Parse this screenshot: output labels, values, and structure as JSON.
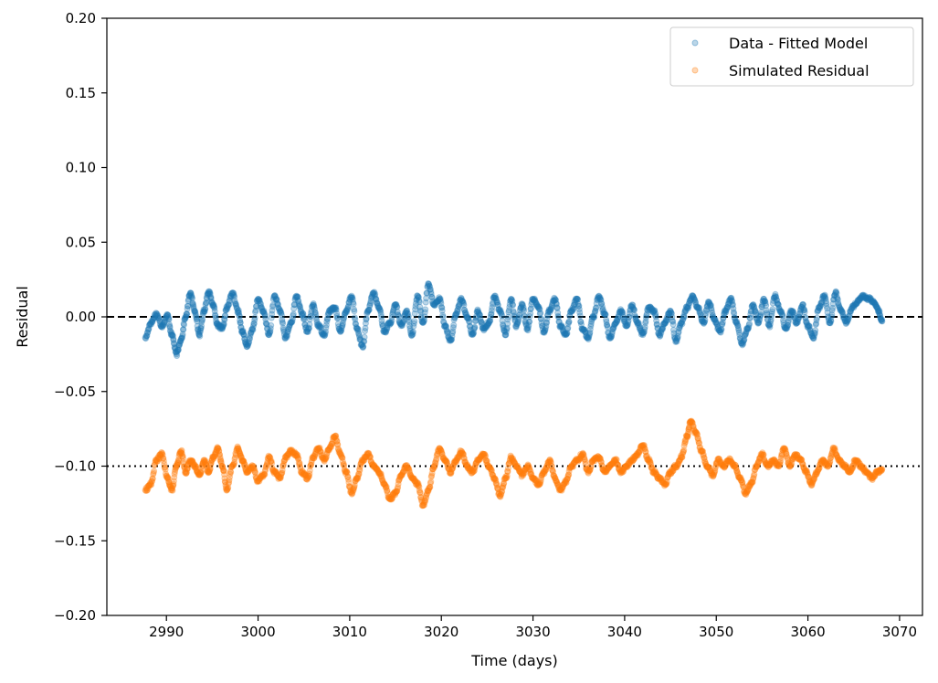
{
  "chart_data": {
    "type": "scatter",
    "title": "",
    "xlabel": "Time (days)",
    "ylabel": "Residual",
    "xlim": [
      2983.5,
      3072.5
    ],
    "ylim": [
      -0.2,
      0.2
    ],
    "x_ticks": [
      2990,
      3000,
      3010,
      3020,
      3030,
      3040,
      3050,
      3060,
      3070
    ],
    "y_ticks": [
      -0.2,
      -0.15,
      -0.1,
      -0.05,
      0.0,
      0.05,
      0.1,
      0.15,
      0.2
    ],
    "x_tick_labels": [
      "2990",
      "3000",
      "3010",
      "3020",
      "3030",
      "3040",
      "3050",
      "3060",
      "3070"
    ],
    "y_tick_labels": [
      "−0.20",
      "−0.15",
      "−0.10",
      "−0.05",
      "0.00",
      "0.05",
      "0.10",
      "0.15",
      "0.20"
    ],
    "grid": false,
    "legend_position": "top-right",
    "reference_lines": [
      {
        "y": 0.0,
        "style": "dashed",
        "color": "#000000"
      },
      {
        "y": -0.1,
        "style": "dotted",
        "color": "#000000"
      }
    ],
    "series": [
      {
        "name": "Data - Fitted Model",
        "color": "#1f77b4",
        "points": [
          [
            2987.7,
            -0.014
          ],
          [
            2988.3,
            -0.004
          ],
          [
            2988.9,
            0.002
          ],
          [
            2989.5,
            -0.006
          ],
          [
            2990.1,
            0.001
          ],
          [
            2990.6,
            -0.012
          ],
          [
            2991.1,
            -0.025
          ],
          [
            2991.6,
            -0.015
          ],
          [
            2992.1,
            0.0
          ],
          [
            2992.6,
            0.016
          ],
          [
            2993.1,
            0.004
          ],
          [
            2993.6,
            -0.012
          ],
          [
            2994.1,
            0.004
          ],
          [
            2994.6,
            0.017
          ],
          [
            2995.1,
            0.008
          ],
          [
            2995.6,
            -0.006
          ],
          [
            2996.1,
            -0.008
          ],
          [
            2996.6,
            0.006
          ],
          [
            2997.2,
            0.016
          ],
          [
            2997.8,
            0.004
          ],
          [
            2998.3,
            -0.01
          ],
          [
            2998.8,
            -0.02
          ],
          [
            2999.4,
            -0.008
          ],
          [
            3000.0,
            0.012
          ],
          [
            3000.6,
            0.003
          ],
          [
            3001.2,
            -0.012
          ],
          [
            3001.8,
            0.014
          ],
          [
            3002.4,
            0.004
          ],
          [
            3003.0,
            -0.014
          ],
          [
            3003.6,
            -0.004
          ],
          [
            3004.2,
            0.014
          ],
          [
            3004.8,
            0.002
          ],
          [
            3005.4,
            -0.01
          ],
          [
            3006.0,
            0.008
          ],
          [
            3006.6,
            -0.006
          ],
          [
            3007.2,
            -0.012
          ],
          [
            3007.8,
            0.004
          ],
          [
            3008.4,
            0.006
          ],
          [
            3009.0,
            -0.01
          ],
          [
            3009.6,
            0.004
          ],
          [
            3010.2,
            0.014
          ],
          [
            3010.8,
            -0.008
          ],
          [
            3011.4,
            -0.02
          ],
          [
            3012.0,
            0.004
          ],
          [
            3012.6,
            0.016
          ],
          [
            3013.2,
            0.006
          ],
          [
            3013.8,
            -0.01
          ],
          [
            3014.4,
            -0.004
          ],
          [
            3015.0,
            0.008
          ],
          [
            3015.6,
            -0.006
          ],
          [
            3016.2,
            0.004
          ],
          [
            3016.8,
            -0.012
          ],
          [
            3017.4,
            0.014
          ],
          [
            3018.0,
            -0.004
          ],
          [
            3018.6,
            0.022
          ],
          [
            3019.2,
            0.008
          ],
          [
            3019.8,
            0.012
          ],
          [
            3020.4,
            -0.006
          ],
          [
            3021.0,
            -0.016
          ],
          [
            3021.6,
            0.002
          ],
          [
            3022.2,
            0.012
          ],
          [
            3022.8,
            0.0
          ],
          [
            3023.4,
            -0.012
          ],
          [
            3024.0,
            0.004
          ],
          [
            3024.6,
            -0.008
          ],
          [
            3025.2,
            -0.004
          ],
          [
            3025.8,
            0.014
          ],
          [
            3026.4,
            0.004
          ],
          [
            3027.0,
            -0.012
          ],
          [
            3027.6,
            0.012
          ],
          [
            3028.2,
            -0.006
          ],
          [
            3028.8,
            0.008
          ],
          [
            3029.4,
            -0.008
          ],
          [
            3030.0,
            0.012
          ],
          [
            3030.6,
            0.006
          ],
          [
            3031.2,
            -0.01
          ],
          [
            3031.8,
            0.004
          ],
          [
            3032.4,
            0.012
          ],
          [
            3033.0,
            -0.006
          ],
          [
            3033.6,
            -0.012
          ],
          [
            3034.2,
            0.004
          ],
          [
            3034.8,
            0.012
          ],
          [
            3035.4,
            -0.008
          ],
          [
            3036.0,
            -0.014
          ],
          [
            3036.6,
            0.0
          ],
          [
            3037.2,
            0.014
          ],
          [
            3037.8,
            0.002
          ],
          [
            3038.4,
            -0.014
          ],
          [
            3039.0,
            -0.004
          ],
          [
            3039.6,
            0.004
          ],
          [
            3040.2,
            -0.006
          ],
          [
            3040.8,
            0.008
          ],
          [
            3041.4,
            -0.004
          ],
          [
            3042.0,
            -0.012
          ],
          [
            3042.6,
            0.006
          ],
          [
            3043.2,
            0.004
          ],
          [
            3043.8,
            -0.012
          ],
          [
            3044.4,
            -0.004
          ],
          [
            3045.0,
            0.004
          ],
          [
            3045.6,
            -0.016
          ],
          [
            3046.2,
            -0.004
          ],
          [
            3046.8,
            0.006
          ],
          [
            3047.4,
            0.014
          ],
          [
            3048.0,
            0.006
          ],
          [
            3048.6,
            -0.004
          ],
          [
            3049.2,
            0.01
          ],
          [
            3049.8,
            -0.002
          ],
          [
            3050.4,
            -0.01
          ],
          [
            3051.0,
            0.004
          ],
          [
            3051.6,
            0.012
          ],
          [
            3052.2,
            -0.004
          ],
          [
            3052.8,
            -0.018
          ],
          [
            3053.4,
            -0.008
          ],
          [
            3054.0,
            0.008
          ],
          [
            3054.6,
            -0.004
          ],
          [
            3055.2,
            0.012
          ],
          [
            3055.8,
            -0.006
          ],
          [
            3056.4,
            0.014
          ],
          [
            3057.0,
            0.004
          ],
          [
            3057.6,
            -0.008
          ],
          [
            3058.2,
            0.004
          ],
          [
            3058.8,
            -0.004
          ],
          [
            3059.4,
            0.008
          ],
          [
            3060.0,
            -0.006
          ],
          [
            3060.6,
            -0.014
          ],
          [
            3061.2,
            0.006
          ],
          [
            3061.8,
            0.014
          ],
          [
            3062.4,
            -0.004
          ],
          [
            3063.0,
            0.016
          ],
          [
            3063.6,
            0.004
          ],
          [
            3064.2,
            -0.004
          ],
          [
            3064.8,
            0.006
          ],
          [
            3065.4,
            0.01
          ],
          [
            3066.0,
            0.014
          ],
          [
            3066.6,
            0.012
          ],
          [
            3067.2,
            0.01
          ],
          [
            3067.7,
            0.004
          ],
          [
            3068.1,
            -0.003
          ]
        ]
      },
      {
        "name": "Simulated Residual",
        "color": "#ff7f0e",
        "points": [
          [
            2987.7,
            -0.116
          ],
          [
            2988.3,
            -0.112
          ],
          [
            2988.9,
            -0.096
          ],
          [
            2989.5,
            -0.092
          ],
          [
            2990.1,
            -0.108
          ],
          [
            2990.6,
            -0.116
          ],
          [
            2991.1,
            -0.1
          ],
          [
            2991.6,
            -0.09
          ],
          [
            2992.1,
            -0.104
          ],
          [
            2992.6,
            -0.096
          ],
          [
            2993.1,
            -0.1
          ],
          [
            2993.6,
            -0.106
          ],
          [
            2994.1,
            -0.096
          ],
          [
            2994.6,
            -0.104
          ],
          [
            2995.1,
            -0.094
          ],
          [
            2995.6,
            -0.088
          ],
          [
            2996.1,
            -0.1
          ],
          [
            2996.6,
            -0.116
          ],
          [
            2997.2,
            -0.1
          ],
          [
            2997.8,
            -0.088
          ],
          [
            2998.3,
            -0.096
          ],
          [
            2998.8,
            -0.104
          ],
          [
            2999.4,
            -0.1
          ],
          [
            3000.0,
            -0.11
          ],
          [
            3000.6,
            -0.106
          ],
          [
            3001.2,
            -0.094
          ],
          [
            3001.8,
            -0.104
          ],
          [
            3002.4,
            -0.108
          ],
          [
            3003.0,
            -0.094
          ],
          [
            3003.6,
            -0.09
          ],
          [
            3004.2,
            -0.092
          ],
          [
            3004.8,
            -0.104
          ],
          [
            3005.4,
            -0.108
          ],
          [
            3006.0,
            -0.094
          ],
          [
            3006.6,
            -0.088
          ],
          [
            3007.2,
            -0.096
          ],
          [
            3007.8,
            -0.088
          ],
          [
            3008.4,
            -0.08
          ],
          [
            3009.0,
            -0.092
          ],
          [
            3009.6,
            -0.104
          ],
          [
            3010.2,
            -0.118
          ],
          [
            3010.8,
            -0.108
          ],
          [
            3011.4,
            -0.096
          ],
          [
            3012.0,
            -0.092
          ],
          [
            3012.6,
            -0.1
          ],
          [
            3013.2,
            -0.104
          ],
          [
            3013.8,
            -0.112
          ],
          [
            3014.4,
            -0.122
          ],
          [
            3015.0,
            -0.118
          ],
          [
            3015.6,
            -0.106
          ],
          [
            3016.2,
            -0.1
          ],
          [
            3016.8,
            -0.108
          ],
          [
            3017.4,
            -0.112
          ],
          [
            3018.0,
            -0.126
          ],
          [
            3018.6,
            -0.116
          ],
          [
            3019.2,
            -0.1
          ],
          [
            3019.8,
            -0.088
          ],
          [
            3020.4,
            -0.096
          ],
          [
            3021.0,
            -0.104
          ],
          [
            3021.6,
            -0.096
          ],
          [
            3022.2,
            -0.09
          ],
          [
            3022.8,
            -0.1
          ],
          [
            3023.4,
            -0.104
          ],
          [
            3024.0,
            -0.096
          ],
          [
            3024.6,
            -0.092
          ],
          [
            3025.2,
            -0.1
          ],
          [
            3025.8,
            -0.108
          ],
          [
            3026.4,
            -0.12
          ],
          [
            3027.0,
            -0.108
          ],
          [
            3027.6,
            -0.094
          ],
          [
            3028.2,
            -0.1
          ],
          [
            3028.8,
            -0.106
          ],
          [
            3029.4,
            -0.1
          ],
          [
            3030.0,
            -0.108
          ],
          [
            3030.6,
            -0.112
          ],
          [
            3031.2,
            -0.104
          ],
          [
            3031.8,
            -0.096
          ],
          [
            3032.4,
            -0.108
          ],
          [
            3033.0,
            -0.116
          ],
          [
            3033.6,
            -0.11
          ],
          [
            3034.2,
            -0.1
          ],
          [
            3034.8,
            -0.096
          ],
          [
            3035.4,
            -0.092
          ],
          [
            3036.0,
            -0.104
          ],
          [
            3036.6,
            -0.096
          ],
          [
            3037.2,
            -0.094
          ],
          [
            3037.8,
            -0.104
          ],
          [
            3038.4,
            -0.1
          ],
          [
            3039.0,
            -0.096
          ],
          [
            3039.6,
            -0.104
          ],
          [
            3040.2,
            -0.1
          ],
          [
            3040.8,
            -0.096
          ],
          [
            3041.4,
            -0.092
          ],
          [
            3042.0,
            -0.086
          ],
          [
            3042.6,
            -0.096
          ],
          [
            3043.2,
            -0.104
          ],
          [
            3043.8,
            -0.108
          ],
          [
            3044.4,
            -0.112
          ],
          [
            3045.0,
            -0.104
          ],
          [
            3045.6,
            -0.1
          ],
          [
            3046.2,
            -0.094
          ],
          [
            3046.8,
            -0.08
          ],
          [
            3047.2,
            -0.07
          ],
          [
            3047.8,
            -0.078
          ],
          [
            3048.4,
            -0.09
          ],
          [
            3049.0,
            -0.1
          ],
          [
            3049.6,
            -0.106
          ],
          [
            3050.2,
            -0.096
          ],
          [
            3050.8,
            -0.1
          ],
          [
            3051.4,
            -0.096
          ],
          [
            3052.0,
            -0.1
          ],
          [
            3052.6,
            -0.108
          ],
          [
            3053.2,
            -0.118
          ],
          [
            3053.8,
            -0.112
          ],
          [
            3054.4,
            -0.1
          ],
          [
            3055.0,
            -0.092
          ],
          [
            3055.6,
            -0.1
          ],
          [
            3056.2,
            -0.096
          ],
          [
            3056.8,
            -0.1
          ],
          [
            3057.4,
            -0.088
          ],
          [
            3058.0,
            -0.1
          ],
          [
            3058.6,
            -0.092
          ],
          [
            3059.2,
            -0.096
          ],
          [
            3059.8,
            -0.104
          ],
          [
            3060.4,
            -0.112
          ],
          [
            3061.0,
            -0.104
          ],
          [
            3061.6,
            -0.096
          ],
          [
            3062.2,
            -0.1
          ],
          [
            3062.8,
            -0.088
          ],
          [
            3063.4,
            -0.096
          ],
          [
            3064.0,
            -0.1
          ],
          [
            3064.6,
            -0.104
          ],
          [
            3065.2,
            -0.096
          ],
          [
            3065.8,
            -0.1
          ],
          [
            3066.4,
            -0.104
          ],
          [
            3067.0,
            -0.108
          ],
          [
            3067.6,
            -0.104
          ],
          [
            3068.1,
            -0.102
          ]
        ]
      }
    ]
  }
}
